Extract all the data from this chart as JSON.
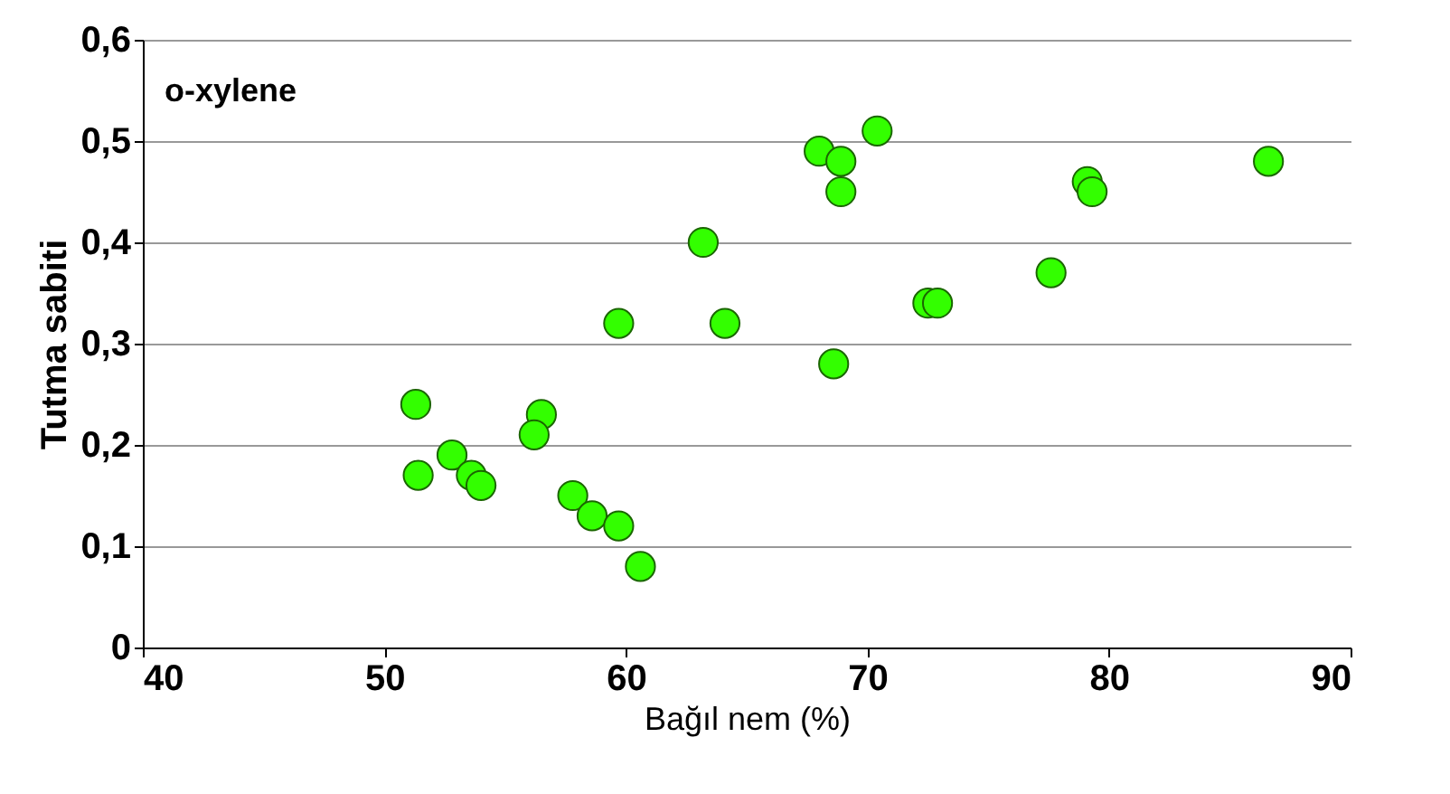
{
  "chart_data": {
    "type": "scatter",
    "xlabel": "Bağıl nem (%)",
    "ylabel": "Tutma sabiti",
    "annotations": [
      "o-xylene"
    ],
    "x": [
      51.3,
      51.4,
      52.8,
      53.6,
      54.0,
      56.5,
      56.2,
      57.8,
      58.6,
      59.7,
      60.6,
      59.7,
      63.2,
      64.1,
      68.0,
      68.9,
      68.9,
      68.6,
      70.4,
      72.5,
      72.9,
      77.6,
      79.1,
      79.3,
      86.6
    ],
    "series": [
      {
        "color": "#33ff00",
        "values": [
          0.24,
          0.17,
          0.19,
          0.17,
          0.16,
          0.23,
          0.21,
          0.15,
          0.13,
          0.12,
          0.08,
          0.32,
          0.4,
          0.32,
          0.49,
          0.48,
          0.45,
          0.28,
          0.51,
          0.34,
          0.34,
          0.37,
          0.46,
          0.45,
          0.48
        ]
      }
    ],
    "xlim": [
      40,
      90
    ],
    "xticks": [
      40,
      50,
      60,
      70,
      80,
      90
    ],
    "ylim": [
      0,
      0.6
    ],
    "yticks": [
      {
        "value": 0,
        "label": "0"
      },
      {
        "value": 0.1,
        "label": "0,1"
      },
      {
        "value": 0.2,
        "label": "0,2"
      },
      {
        "value": 0.3,
        "label": "0,3"
      },
      {
        "value": 0.4,
        "label": "0,4"
      },
      {
        "value": 0.5,
        "label": "0,5"
      },
      {
        "value": 0.6,
        "label": "0,6"
      }
    ],
    "grid": "y",
    "marker": "circle"
  }
}
